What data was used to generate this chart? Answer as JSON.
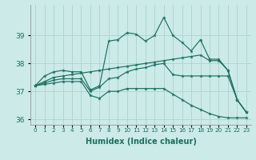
{
  "xlabel": "Humidex (Indice chaleur)",
  "x_values": [
    0,
    1,
    2,
    3,
    4,
    5,
    6,
    7,
    8,
    9,
    10,
    11,
    12,
    13,
    14,
    15,
    16,
    17,
    18,
    19,
    20,
    21,
    22,
    23
  ],
  "line1": [
    37.2,
    37.55,
    37.7,
    37.75,
    37.7,
    37.7,
    37.05,
    37.2,
    38.8,
    38.85,
    39.1,
    39.05,
    38.8,
    39.0,
    39.65,
    39.0,
    38.75,
    38.45,
    38.85,
    38.15,
    38.15,
    37.75,
    36.7,
    36.25
  ],
  "line2": [
    37.2,
    37.35,
    37.5,
    37.55,
    37.6,
    37.65,
    37.7,
    37.75,
    37.8,
    37.85,
    37.9,
    37.95,
    38.0,
    38.05,
    38.1,
    38.15,
    38.2,
    38.25,
    38.3,
    38.1,
    38.1,
    37.75,
    36.7,
    36.25
  ],
  "line3": [
    37.2,
    37.3,
    37.4,
    37.45,
    37.45,
    37.45,
    37.0,
    37.15,
    37.45,
    37.5,
    37.7,
    37.8,
    37.85,
    37.95,
    38.0,
    37.6,
    37.55,
    37.55,
    37.55,
    37.55,
    37.55,
    37.55,
    36.7,
    36.25
  ],
  "line4": [
    37.2,
    37.25,
    37.3,
    37.35,
    37.35,
    37.35,
    36.85,
    36.75,
    37.0,
    37.0,
    37.1,
    37.1,
    37.1,
    37.1,
    37.1,
    36.9,
    36.7,
    36.5,
    36.35,
    36.2,
    36.1,
    36.05,
    36.05,
    36.05
  ],
  "line_color": "#1a7060",
  "bg_color": "#cceae8",
  "grid_color": "#aad4d0",
  "ylim": [
    35.8,
    40.1
  ],
  "yticks": [
    36,
    37,
    38,
    39
  ],
  "xlim": [
    -0.5,
    23.5
  ]
}
